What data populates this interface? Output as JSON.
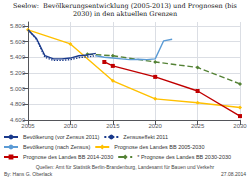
{
  "chart_data": {
    "type": "line",
    "title": "Seelow:  Bevölkerungsentwicklung (2005-2013) und Prognosen (bis\n2030) in den aktuellen Grenzen",
    "xlim": [
      2005,
      2030
    ],
    "xticks": [
      2005,
      2010,
      2015,
      2020,
      2025,
      2030
    ],
    "ylim": [
      4600,
      5850
    ],
    "yticks": [
      {
        "value": 4600,
        "label": "4.600"
      },
      {
        "value": 4800,
        "label": "4.800"
      },
      {
        "value": 5000,
        "label": "5.000"
      },
      {
        "value": 5200,
        "label": "5.200"
      },
      {
        "value": 5400,
        "label": "5.400"
      },
      {
        "value": 5600,
        "label": "5.600"
      },
      {
        "value": 5800,
        "label": "5.800"
      }
    ],
    "grid": true,
    "legend": "lower left",
    "annotations": [
      "By: Hans G. Oberlack",
      "Quellen: Amt für Statistik Berlin-Brandenburg, Landesamt für Bauen und Verkehr",
      "27.08.2014"
    ],
    "series": [
      {
        "name": "Bevölkerung (vor Zensus 2011)",
        "color": "#1a3a8c",
        "line_style": "solid",
        "marker": "none",
        "x": [
          2005,
          2006,
          2007,
          2008,
          2009,
          2010,
          2011,
          2012,
          2013
        ],
        "values": [
          5750,
          5640,
          5420,
          5380,
          5380,
          5390,
          5420,
          5430,
          5450
        ]
      },
      {
        "name": "Zensuseffekt 2011",
        "color": "#1a3a8c",
        "line_style": "dotted",
        "marker": "none",
        "x": [
          2005,
          2006,
          2007,
          2008,
          2009,
          2010,
          2011,
          2012,
          2013
        ],
        "values": [
          5750,
          5630,
          5400,
          5360,
          5360,
          5370,
          5395,
          5405,
          5420
        ]
      },
      {
        "name": "Bevölkerung (nach Zensus)",
        "color": "#5b9bd5",
        "line_style": "solid",
        "marker": "none",
        "x": [
          2013,
          2014,
          2015,
          2016,
          2017,
          2018,
          2019,
          2020,
          2021,
          2022
        ],
        "values": [
          5420,
          5400,
          5390,
          5380,
          5370,
          5375,
          5370,
          5380,
          5610,
          5630
        ]
      },
      {
        "name": "Prognose des Landes BB 2005-2030",
        "color": "#ffc000",
        "line_style": "solid",
        "marker": "diamond",
        "x": [
          2005,
          2010,
          2015,
          2020,
          2025,
          2030
        ],
        "values": [
          5750,
          5570,
          5100,
          4870,
          4820,
          4760
        ]
      },
      {
        "name": "Prognose des Landes BB 2014-2030",
        "color": "#c00000",
        "line_style": "solid",
        "marker": "square",
        "x": [
          2014,
          2015,
          2020,
          2025,
          2030
        ],
        "values": [
          5340,
          5290,
          5150,
          4970,
          4650
        ]
      },
      {
        "name": "* Prognose des Landes BB 2030-2030",
        "color": "#548235",
        "line_style": "dashed",
        "marker": "diamond",
        "x": [
          2012,
          2015,
          2020,
          2025,
          2030
        ],
        "values": [
          5440,
          5420,
          5340,
          5270,
          5060
        ]
      }
    ]
  }
}
